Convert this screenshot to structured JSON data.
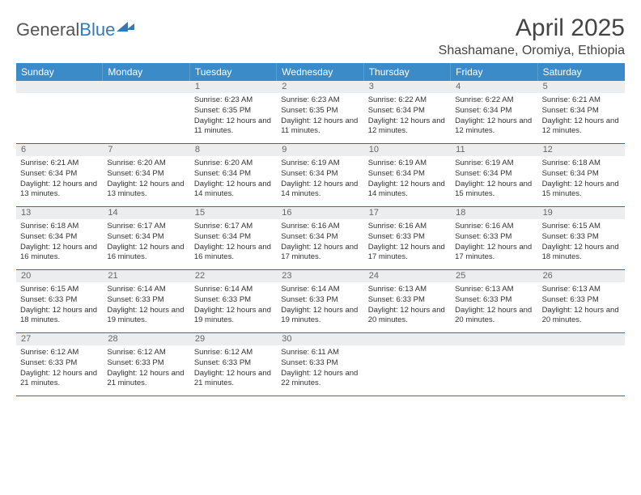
{
  "brand": {
    "part1": "General",
    "part2": "Blue"
  },
  "title": "April 2025",
  "location": "Shashamane, Oromiya, Ethiopia",
  "colors": {
    "header_bg": "#3b8bc9",
    "header_text": "#ffffff",
    "daynum_bg": "#ebedef",
    "week_border": "#2f6fa6",
    "body_text": "#333333",
    "title_text": "#444444"
  },
  "weekdays": [
    "Sunday",
    "Monday",
    "Tuesday",
    "Wednesday",
    "Thursday",
    "Friday",
    "Saturday"
  ],
  "weeks": [
    {
      "nums": [
        "",
        "",
        "1",
        "2",
        "3",
        "4",
        "5"
      ],
      "cells": [
        null,
        null,
        {
          "sunrise": "6:23 AM",
          "sunset": "6:35 PM",
          "daylight": "12 hours and 11 minutes."
        },
        {
          "sunrise": "6:23 AM",
          "sunset": "6:35 PM",
          "daylight": "12 hours and 11 minutes."
        },
        {
          "sunrise": "6:22 AM",
          "sunset": "6:34 PM",
          "daylight": "12 hours and 12 minutes."
        },
        {
          "sunrise": "6:22 AM",
          "sunset": "6:34 PM",
          "daylight": "12 hours and 12 minutes."
        },
        {
          "sunrise": "6:21 AM",
          "sunset": "6:34 PM",
          "daylight": "12 hours and 12 minutes."
        }
      ]
    },
    {
      "nums": [
        "6",
        "7",
        "8",
        "9",
        "10",
        "11",
        "12"
      ],
      "cells": [
        {
          "sunrise": "6:21 AM",
          "sunset": "6:34 PM",
          "daylight": "12 hours and 13 minutes."
        },
        {
          "sunrise": "6:20 AM",
          "sunset": "6:34 PM",
          "daylight": "12 hours and 13 minutes."
        },
        {
          "sunrise": "6:20 AM",
          "sunset": "6:34 PM",
          "daylight": "12 hours and 14 minutes."
        },
        {
          "sunrise": "6:19 AM",
          "sunset": "6:34 PM",
          "daylight": "12 hours and 14 minutes."
        },
        {
          "sunrise": "6:19 AM",
          "sunset": "6:34 PM",
          "daylight": "12 hours and 14 minutes."
        },
        {
          "sunrise": "6:19 AM",
          "sunset": "6:34 PM",
          "daylight": "12 hours and 15 minutes."
        },
        {
          "sunrise": "6:18 AM",
          "sunset": "6:34 PM",
          "daylight": "12 hours and 15 minutes."
        }
      ]
    },
    {
      "nums": [
        "13",
        "14",
        "15",
        "16",
        "17",
        "18",
        "19"
      ],
      "cells": [
        {
          "sunrise": "6:18 AM",
          "sunset": "6:34 PM",
          "daylight": "12 hours and 16 minutes."
        },
        {
          "sunrise": "6:17 AM",
          "sunset": "6:34 PM",
          "daylight": "12 hours and 16 minutes."
        },
        {
          "sunrise": "6:17 AM",
          "sunset": "6:34 PM",
          "daylight": "12 hours and 16 minutes."
        },
        {
          "sunrise": "6:16 AM",
          "sunset": "6:34 PM",
          "daylight": "12 hours and 17 minutes."
        },
        {
          "sunrise": "6:16 AM",
          "sunset": "6:33 PM",
          "daylight": "12 hours and 17 minutes."
        },
        {
          "sunrise": "6:16 AM",
          "sunset": "6:33 PM",
          "daylight": "12 hours and 17 minutes."
        },
        {
          "sunrise": "6:15 AM",
          "sunset": "6:33 PM",
          "daylight": "12 hours and 18 minutes."
        }
      ]
    },
    {
      "nums": [
        "20",
        "21",
        "22",
        "23",
        "24",
        "25",
        "26"
      ],
      "cells": [
        {
          "sunrise": "6:15 AM",
          "sunset": "6:33 PM",
          "daylight": "12 hours and 18 minutes."
        },
        {
          "sunrise": "6:14 AM",
          "sunset": "6:33 PM",
          "daylight": "12 hours and 19 minutes."
        },
        {
          "sunrise": "6:14 AM",
          "sunset": "6:33 PM",
          "daylight": "12 hours and 19 minutes."
        },
        {
          "sunrise": "6:14 AM",
          "sunset": "6:33 PM",
          "daylight": "12 hours and 19 minutes."
        },
        {
          "sunrise": "6:13 AM",
          "sunset": "6:33 PM",
          "daylight": "12 hours and 20 minutes."
        },
        {
          "sunrise": "6:13 AM",
          "sunset": "6:33 PM",
          "daylight": "12 hours and 20 minutes."
        },
        {
          "sunrise": "6:13 AM",
          "sunset": "6:33 PM",
          "daylight": "12 hours and 20 minutes."
        }
      ]
    },
    {
      "nums": [
        "27",
        "28",
        "29",
        "30",
        "",
        "",
        ""
      ],
      "cells": [
        {
          "sunrise": "6:12 AM",
          "sunset": "6:33 PM",
          "daylight": "12 hours and 21 minutes."
        },
        {
          "sunrise": "6:12 AM",
          "sunset": "6:33 PM",
          "daylight": "12 hours and 21 minutes."
        },
        {
          "sunrise": "6:12 AM",
          "sunset": "6:33 PM",
          "daylight": "12 hours and 21 minutes."
        },
        {
          "sunrise": "6:11 AM",
          "sunset": "6:33 PM",
          "daylight": "12 hours and 22 minutes."
        },
        null,
        null,
        null
      ]
    }
  ],
  "labels": {
    "sunrise": "Sunrise:",
    "sunset": "Sunset:",
    "daylight": "Daylight:"
  }
}
